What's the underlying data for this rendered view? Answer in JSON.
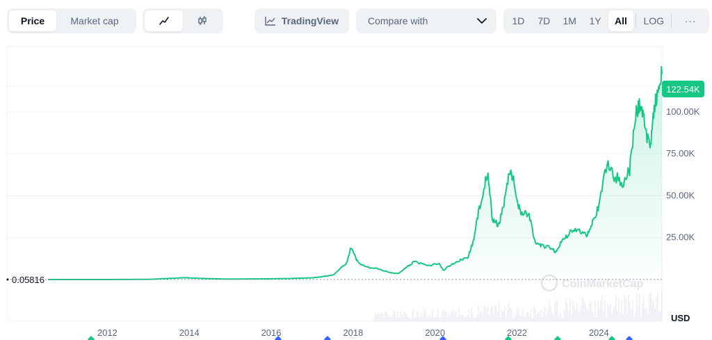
{
  "toolbar": {
    "chart_type": {
      "price": "Price",
      "market_cap": "Market cap"
    },
    "tradingview_label": "TradingView",
    "compare_label": "Compare with",
    "ranges": [
      "1D",
      "7D",
      "1M",
      "1Y",
      "All"
    ],
    "active_range": "All",
    "log_label": "LOG",
    "more_label": "···"
  },
  "colors": {
    "line": "#16c784",
    "active_badge": "#16c784",
    "text_muted": "#58667e"
  },
  "watermark": "CoinMarketCap",
  "chart_data": {
    "type": "line",
    "currency": "USD",
    "current_price_label": "122.54K",
    "base_price_label": "0.05816",
    "yticks": [
      "100.00K",
      "75.00K",
      "50.00K",
      "25.00K"
    ],
    "ytick_values": [
      100000,
      75000,
      50000,
      25000
    ],
    "xticks": [
      "2012",
      "2014",
      "2016",
      "2018",
      "2020",
      "2022",
      "2024"
    ],
    "xtick_values": [
      2012,
      2014,
      2016,
      2018,
      2020,
      2022,
      2024
    ],
    "ylim": [
      0,
      139000
    ],
    "xlim": [
      2010.55,
      2025.54
    ],
    "series": [
      {
        "x": [
          2010.55,
          2011.5,
          2012.0,
          2013.0,
          2013.9,
          2014.2,
          2015.0,
          2016.0,
          2016.5,
          2017.0,
          2017.5,
          2017.85,
          2017.95,
          2018.1,
          2018.3,
          2018.6,
          2018.9,
          2019.1,
          2019.3,
          2019.5,
          2019.8,
          2020.1,
          2020.2,
          2020.4,
          2020.6,
          2020.8,
          2020.95,
          2021.1,
          2021.28,
          2021.4,
          2021.55,
          2021.7,
          2021.85,
          2021.98,
          2022.1,
          2022.3,
          2022.45,
          2022.6,
          2022.8,
          2022.95,
          2023.1,
          2023.3,
          2023.5,
          2023.7,
          2023.85,
          2024.0,
          2024.2,
          2024.4,
          2024.6,
          2024.75,
          2024.9,
          2025.0,
          2025.1,
          2025.25,
          2025.35,
          2025.45,
          2025.54
        ],
        "y": [
          0.06,
          3,
          5,
          100,
          1100,
          700,
          250,
          430,
          650,
          1000,
          2500,
          10000,
          19000,
          11000,
          7500,
          6500,
          4000,
          3600,
          7000,
          11000,
          8000,
          9500,
          5500,
          9000,
          11500,
          13000,
          24000,
          45000,
          64000,
          36000,
          32000,
          48000,
          67000,
          50000,
          40000,
          39000,
          21000,
          20000,
          19000,
          16500,
          23000,
          28000,
          30000,
          26500,
          35000,
          43000,
          70000,
          61000,
          58000,
          65000,
          98000,
          105000,
          95000,
          78000,
          105000,
          108000,
          122540
        ]
      }
    ]
  }
}
